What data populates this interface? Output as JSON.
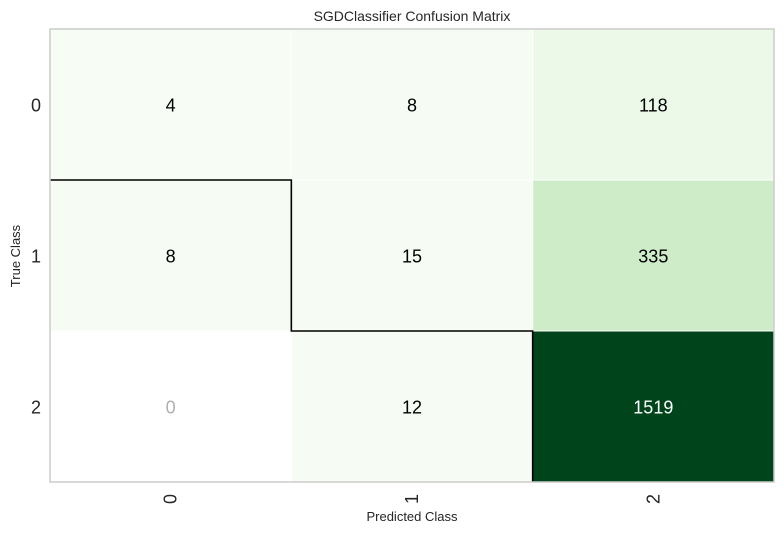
{
  "chart_data": {
    "type": "heatmap",
    "title": "SGDClassifier Confusion Matrix",
    "xlabel": "Predicted Class",
    "ylabel": "True Class",
    "x_categories": [
      "0",
      "1",
      "2"
    ],
    "y_categories": [
      "0",
      "1",
      "2"
    ],
    "values": [
      [
        4,
        8,
        118
      ],
      [
        8,
        15,
        335
      ],
      [
        0,
        12,
        1519
      ]
    ],
    "colormap": "Greens",
    "zero_value_color": "#ffffff",
    "zero_text_color": "#b0b0b0",
    "grid": false,
    "colors": {
      "frame": "#cccccc",
      "text_dark": "#000000",
      "text_light": "#ffffff",
      "lowest": "#f7fcf5",
      "low": "#e5f5e0",
      "highest": "#00441b"
    }
  }
}
